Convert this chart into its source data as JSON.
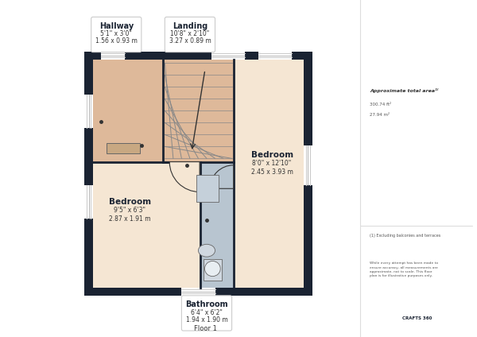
{
  "bg_color": "#ffffff",
  "outer_wall_color": "#1a2332",
  "room_fill_hallway": "#deb99a",
  "room_fill_bedroom": "#f5e6d3",
  "room_fill_bathroom": "#b8c5d0",
  "wall_color": "#1a2332",
  "window_color": "#ffffff",
  "title_text": "Floor 1",
  "labels": {
    "hallway": {
      "name": "Hallway",
      "dim1": "5'1\" x 3'0\"",
      "dim2": "1.56 x 0.93 m"
    },
    "landing": {
      "name": "Landing",
      "dim1": "10'8\" x 2'10\"",
      "dim2": "3.27 x 0.89 m"
    },
    "bedroom_left": {
      "name": "Bedroom",
      "dim1": "9'5\" x 6'3\"",
      "dim2": "2.87 x 1.91 m"
    },
    "bedroom_right": {
      "name": "Bedroom",
      "dim1": "8'0\" x 12'10\"",
      "dim2": "2.45 x 3.93 m"
    },
    "bathroom": {
      "name": "Bathroom",
      "dim1": "6'4\" x 6'2\"",
      "dim2": "1.94 x 1.90 m"
    }
  },
  "side_text": {
    "approx_title": "Approximate total area¹⁽",
    "area_ft": "300.74 ft²",
    "area_m": "27.94 m²",
    "footnote": "(1) Excluding balconies and terraces",
    "disclaimer": "While every attempt has been made to\nensure accuracy, all measurements are\napproximate, not to scale. This floor\nplan is for illustrative purposes only.",
    "brand": "CRAFTS 360"
  }
}
